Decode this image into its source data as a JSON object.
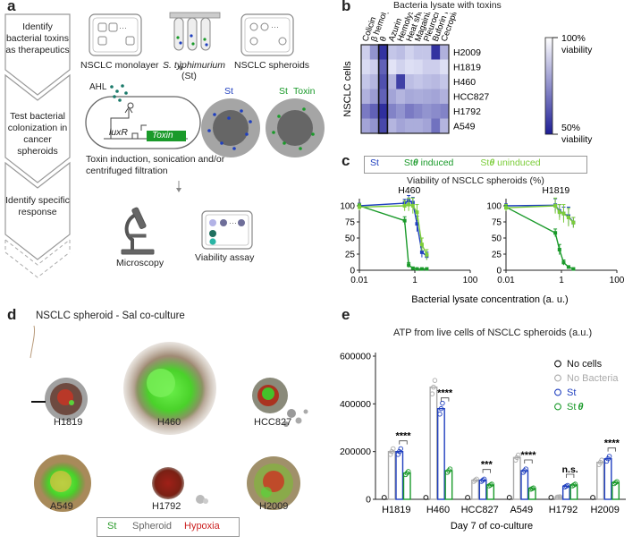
{
  "panel_labels": {
    "a": "a",
    "b": "b",
    "c": "c",
    "d": "d",
    "e": "e"
  },
  "panel_a": {
    "steps": [
      "Identify bacterial toxins as therapeutics",
      "Test bacterial colonization in cancer spheroids",
      "Identify specific response"
    ],
    "monolayer": "NSCLC monolayer",
    "bacteria": "S. typhimurium",
    "bacteria_abbr": "(St)",
    "spheroids": "NSCLC spheroids",
    "ahl": "AHL",
    "luxr": "luxR",
    "toxin_gene": "Toxin",
    "st_label": "St",
    "st_toxin_st": "St",
    "st_toxin_toxin": "Toxin",
    "process": "Toxin induction, sonication and/or centrifuged filtration",
    "microscopy": "Microscopy",
    "viability": "Viability assay",
    "colors": {
      "st": "#1f3fbf",
      "toxin": "#1a9a2a",
      "box": "#9a9a9a"
    }
  },
  "panel_b": {
    "title": "Bacteria lysate with toxins",
    "y_axis_label": "NSCLC cells",
    "columns": [
      "Colicin",
      "β hemolysin",
      "θ",
      "Azurin",
      "Hemolysin E",
      "Heat shock",
      "Magainin",
      "Pleurocidin",
      "Buforin IIB",
      "Cecropin X"
    ],
    "rows": [
      "H2009",
      "H1819",
      "H460",
      "HCC827",
      "H1792",
      "A549"
    ],
    "colorbar_top": "100%",
    "colorbar_top2": "viability",
    "colorbar_bottom": "50%",
    "colorbar_bottom2": "viability",
    "values": [
      [
        0.92,
        0.78,
        0.55,
        0.9,
        0.88,
        0.93,
        0.9,
        0.9,
        0.55,
        0.85
      ],
      [
        0.95,
        0.92,
        0.66,
        0.97,
        0.93,
        0.96,
        0.95,
        0.92,
        0.92,
        0.96
      ],
      [
        0.9,
        0.86,
        0.62,
        0.86,
        0.58,
        0.88,
        0.9,
        0.88,
        0.87,
        0.9
      ],
      [
        0.85,
        0.8,
        0.66,
        0.82,
        0.86,
        0.83,
        0.84,
        0.83,
        0.82,
        0.85
      ],
      [
        0.72,
        0.66,
        0.54,
        0.74,
        0.78,
        0.72,
        0.75,
        0.78,
        0.76,
        0.74
      ],
      [
        0.82,
        0.78,
        0.6,
        0.86,
        0.82,
        0.84,
        0.84,
        0.82,
        0.7,
        0.86
      ]
    ]
  },
  "panel_c": {
    "legend": [
      {
        "name": "St",
        "sym": "",
        "suffix": "",
        "color": "#1f3fbf"
      },
      {
        "name": "St",
        "sym": "θ",
        "suffix": " induced",
        "color": "#1a9a2a"
      },
      {
        "name": "St",
        "sym": "θ",
        "suffix": " uninduced",
        "color": "#7ccd3a"
      }
    ],
    "ylabel": "Viability of NSCLC spheroids (%)",
    "xlabel": "Bacterial lysate concentration (a. u.)",
    "x_ticks": [
      "0.01",
      "1",
      "100"
    ],
    "y_ticks": [
      "0",
      "25",
      "50",
      "75",
      "100"
    ],
    "charts": [
      {
        "title": "H460",
        "series": [
          {
            "name": "St",
            "color": "#1f3fbf",
            "x": [
              0.01,
              0.43,
              0.6,
              0.85,
              1.2,
              1.8,
              2.7
            ],
            "y": [
              100,
              104,
              108,
              105,
              72,
              28,
              22
            ],
            "err": [
              4,
              6,
              8,
              8,
              12,
              8,
              6
            ]
          },
          {
            "name": "St θ induced",
            "color": "#1a9a2a",
            "x": [
              0.01,
              0.43,
              0.6,
              0.85,
              1.2,
              1.8,
              2.7
            ],
            "y": [
              100,
              77,
              8,
              3,
              2,
              2,
              2
            ],
            "err": [
              3,
              6,
              4,
              2,
              1,
              1,
              1
            ]
          },
          {
            "name": "St θ uninduced",
            "color": "#7ccd3a",
            "x": [
              0.01,
              0.43,
              0.6,
              0.85,
              1.2,
              1.8,
              2.7
            ],
            "y": [
              98,
              100,
              102,
              100,
              90,
              40,
              24
            ],
            "err": [
              5,
              8,
              10,
              12,
              12,
              10,
              8
            ]
          }
        ]
      },
      {
        "title": "H1819",
        "series": [
          {
            "name": "St",
            "color": "#1f3fbf",
            "x": [
              0.01,
              0.6,
              0.85,
              1.2,
              1.8,
              2.7
            ],
            "y": [
              100,
              101,
              92,
              88,
              84,
              74
            ],
            "err": [
              3,
              10,
              10,
              10,
              14,
              8
            ]
          },
          {
            "name": "St θ induced",
            "color": "#1a9a2a",
            "x": [
              0.01,
              0.6,
              0.85,
              1.2,
              1.8,
              2.7
            ],
            "y": [
              98,
              58,
              32,
              12,
              5,
              2
            ],
            "err": [
              4,
              6,
              8,
              4,
              2,
              1
            ]
          },
          {
            "name": "St θ uninduced",
            "color": "#7ccd3a",
            "x": [
              0.01,
              0.6,
              0.85,
              1.2,
              1.8,
              2.7
            ],
            "y": [
              97,
              100,
              90,
              88,
              82,
              74
            ],
            "err": [
              5,
              12,
              12,
              14,
              14,
              8
            ]
          }
        ]
      }
    ]
  },
  "panel_d": {
    "title": "NSCLC spheroid - Sal co-culture",
    "items": [
      "H1819",
      "H460",
      "HCC827",
      "A549",
      "H1792",
      "H2009"
    ],
    "legend": [
      "St",
      "Spheroid",
      "Hypoxia"
    ],
    "legend_colors": [
      "#2a9a2a",
      "#666666",
      "#cc2222"
    ]
  },
  "panel_e": {
    "title": "ATP from live cells of NSCLC spheroids (a.u.)",
    "xlabel": "Day 7 of co-culture",
    "y_ticks": [
      "0",
      "200000",
      "400000",
      "600000"
    ],
    "legend": [
      {
        "name": "No cells",
        "color": "#111111"
      },
      {
        "name": "No Bacteria",
        "color": "#aaaaaa"
      },
      {
        "name": "St",
        "color": "#1f3fbf"
      },
      {
        "name": "St",
        "sym": "θ",
        "color": "#1a9a2a"
      }
    ],
    "chart_data": {
      "type": "bar",
      "categories": [
        "H1819",
        "H460",
        "HCC827",
        "A549",
        "H1792",
        "H2009"
      ],
      "ylim": [
        0,
        600000
      ],
      "series": [
        {
          "name": "No cells",
          "color": "#111111",
          "values": [
            0,
            0,
            0,
            0,
            0,
            0
          ]
        },
        {
          "name": "No Bacteria",
          "color": "#aaaaaa",
          "values": [
            200000,
            470000,
            80000,
            175000,
            10000,
            155000
          ]
        },
        {
          "name": "St",
          "color": "#1f3fbf",
          "values": [
            200000,
            380000,
            80000,
            120000,
            55000,
            170000
          ]
        },
        {
          "name": "St θ",
          "color": "#1a9a2a",
          "values": [
            110000,
            120000,
            60000,
            45000,
            60000,
            70000
          ]
        }
      ],
      "significance": [
        "****",
        "****",
        "***",
        "****",
        "n.s.",
        "****"
      ]
    }
  }
}
